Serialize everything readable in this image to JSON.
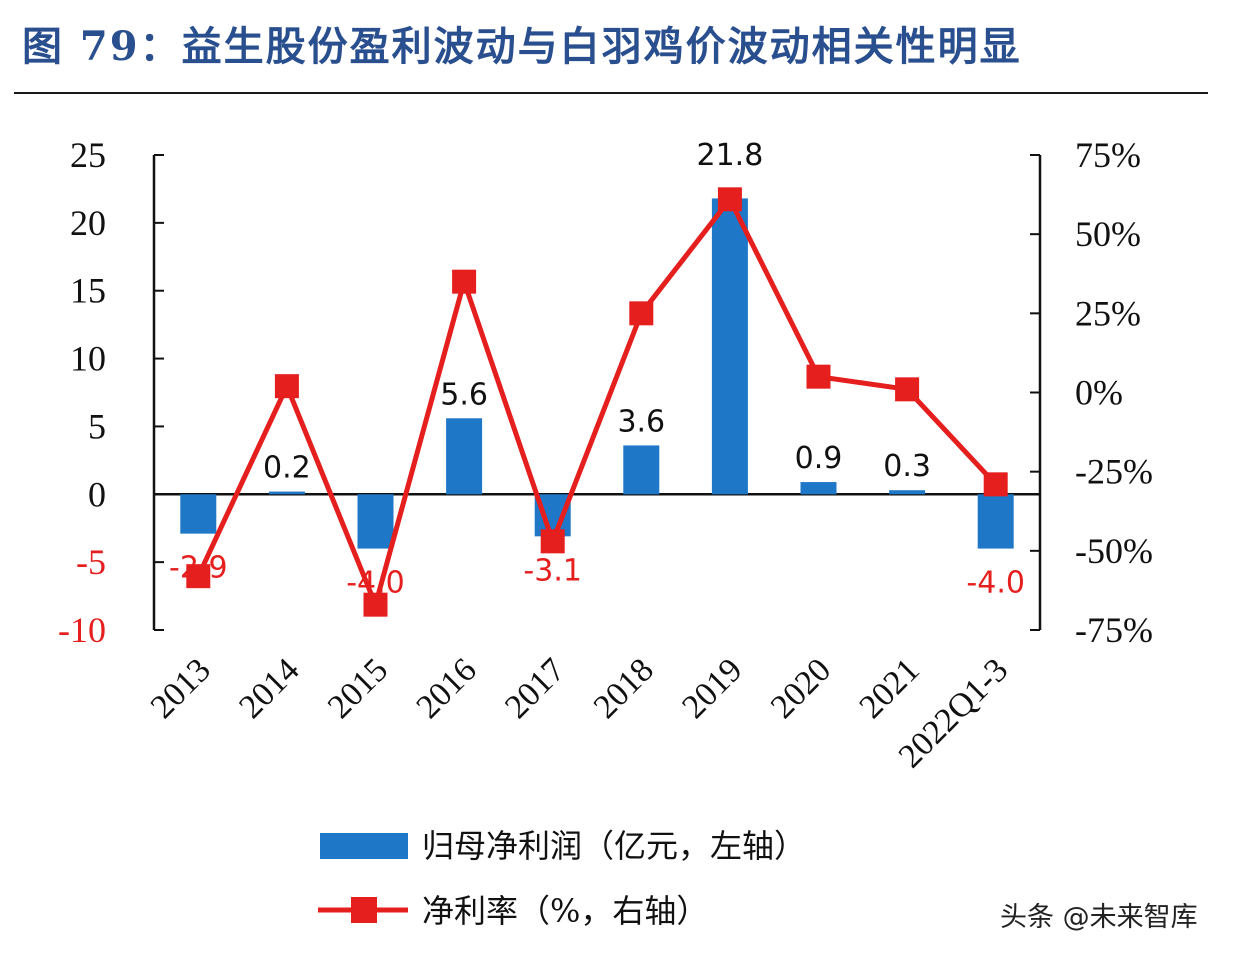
{
  "title": "图 79：益生股份盈利波动与白羽鸡价波动相关性明显",
  "watermark": "头条 @未来智库",
  "colors": {
    "bar": "#1f77c8",
    "line": "#e51e1e",
    "neg_label": "#e51e1e",
    "pos_label": "#111111",
    "title": "#2a4f8f"
  },
  "chart_data": {
    "type": "bar",
    "categories": [
      "2013",
      "2014",
      "2015",
      "2016",
      "2017",
      "2018",
      "2019",
      "2020",
      "2021",
      "2022Q1-3"
    ],
    "series": [
      {
        "name": "归母净利润（亿元，左轴）",
        "type": "bar",
        "axis": "left",
        "values": [
          -2.9,
          0.2,
          -4.0,
          5.6,
          -3.1,
          3.6,
          21.8,
          0.9,
          0.3,
          -4.0
        ]
      },
      {
        "name": "净利率（%，右轴）",
        "type": "line",
        "axis": "right",
        "values": [
          -58,
          2,
          -67,
          35,
          -47,
          25,
          61,
          5,
          1,
          -29
        ]
      }
    ],
    "bar_labels": [
      "-2.9",
      "0.2",
      "-4.0",
      "5.6",
      "-3.1",
      "3.6",
      "21.8",
      "0.9",
      "0.3",
      "-4.0"
    ],
    "left_axis": {
      "ylim": [
        -10,
        25
      ],
      "ticks": [
        "25",
        "20",
        "15",
        "10",
        "5",
        "0",
        "-5",
        "-10"
      ],
      "tick_values": [
        25,
        20,
        15,
        10,
        5,
        0,
        -5,
        -10
      ]
    },
    "right_axis": {
      "ylim": [
        -75,
        75
      ],
      "ticks": [
        "75%",
        "50%",
        "25%",
        "0%",
        "-25%",
        "-50%",
        "-75%"
      ],
      "tick_values": [
        75,
        50,
        25,
        0,
        -25,
        -50,
        -75
      ]
    },
    "grid": false,
    "legend_position": "bottom"
  }
}
